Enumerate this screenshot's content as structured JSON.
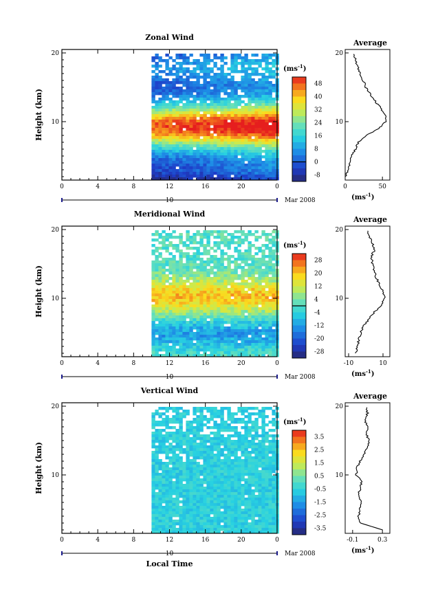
{
  "chart_data": [
    {
      "type": "heatmap",
      "title": "Zonal Wind",
      "ylabel": "Height (km)",
      "xlabel": "",
      "x_ticks": [
        "0",
        "4",
        "8",
        "12",
        "16",
        "20",
        "0"
      ],
      "y_ticks": [
        "20",
        "10"
      ],
      "date_day": "10",
      "date_label": "Mar 2008",
      "xlim": [
        0,
        24
      ],
      "ylim": [
        1.5,
        20.5
      ],
      "data_start_hour": 10,
      "colorbar": {
        "unit": "(ms",
        "unit_exp": "-1",
        "unit_close": ")",
        "tick_labels": [
          "48",
          "40",
          "32",
          "24",
          "16",
          "8",
          "0",
          "-8"
        ],
        "range": [
          -12,
          52
        ],
        "zero_line": 0
      },
      "profile": {
        "title": "Average",
        "x_ticks": [
          "0",
          "50"
        ],
        "xlim": [
          0,
          60
        ],
        "y_ticks": [
          "20",
          "10"
        ],
        "xlabel": "(ms",
        "xlabel_exp": "-1",
        "xlabel_close": ")",
        "heights": [
          2,
          3,
          4,
          5,
          6,
          7,
          8,
          9,
          10,
          11,
          12,
          13,
          14,
          15,
          16,
          17,
          18,
          19,
          20
        ],
        "values": [
          1,
          3,
          6,
          9,
          14,
          18,
          28,
          45,
          55,
          53,
          48,
          40,
          34,
          28,
          24,
          20,
          17,
          14,
          12
        ]
      }
    },
    {
      "type": "heatmap",
      "title": "Meridional Wind",
      "ylabel": "Height (km)",
      "xlabel": "",
      "x_ticks": [
        "0",
        "4",
        "8",
        "12",
        "16",
        "20",
        "0"
      ],
      "y_ticks": [
        "20",
        "10"
      ],
      "date_day": "10",
      "date_label": "Mar 2008",
      "xlim": [
        0,
        24
      ],
      "ylim": [
        1.5,
        20.5
      ],
      "data_start_hour": 10,
      "colorbar": {
        "unit": "(ms",
        "unit_exp": "-1",
        "unit_close": ")",
        "tick_labels": [
          "28",
          "20",
          "12",
          "4",
          "-4",
          "-12",
          "-20",
          "-28"
        ],
        "range": [
          -32,
          32
        ],
        "zero_line": 0
      },
      "profile": {
        "title": "Average",
        "x_ticks": [
          "-10",
          "10"
        ],
        "xlim": [
          -12,
          14
        ],
        "y_ticks": [
          "20",
          "10"
        ],
        "xlabel": "(ms",
        "xlabel_exp": "-1",
        "xlabel_close": ")",
        "heights": [
          2,
          3,
          4,
          5,
          6,
          7,
          8,
          9,
          10,
          11,
          12,
          13,
          14,
          15,
          16,
          17,
          18,
          19,
          20
        ],
        "values": [
          -6,
          -5,
          -4,
          -3,
          -1,
          2,
          5,
          9,
          11,
          10,
          8,
          6,
          5,
          4,
          3,
          5,
          4,
          2,
          1
        ]
      }
    },
    {
      "type": "heatmap",
      "title": "Vertical Wind",
      "ylabel": "Height (km)",
      "xlabel": "Local Time",
      "x_ticks": [
        "0",
        "4",
        "8",
        "12",
        "16",
        "20",
        "0"
      ],
      "y_ticks": [
        "20",
        "10"
      ],
      "date_day": "10",
      "date_label": "Mar 2008",
      "xlim": [
        0,
        24
      ],
      "ylim": [
        1.5,
        20.5
      ],
      "data_start_hour": 10,
      "colorbar": {
        "unit": "(ms",
        "unit_exp": "-1",
        "unit_close": ")",
        "tick_labels": [
          "3.5",
          "2.5",
          "1.5",
          "0.5",
          "-0.5",
          "-1.5",
          "-2.5",
          "-3.5"
        ],
        "range": [
          -4,
          4
        ]
      },
      "profile": {
        "title": "Average",
        "x_ticks": [
          "-0.1",
          "0.3"
        ],
        "xlim": [
          -0.2,
          0.4
        ],
        "y_ticks": [
          "20",
          "10"
        ],
        "xlabel": "(ms",
        "xlabel_exp": "-1",
        "xlabel_close": ")",
        "heights": [
          2,
          3,
          4,
          5,
          6,
          7,
          8,
          9,
          10,
          11,
          12,
          13,
          14,
          15,
          16,
          17,
          18,
          19,
          20
        ],
        "values": [
          0.3,
          0.0,
          -0.02,
          0.0,
          0.02,
          -0.02,
          0.0,
          0.02,
          -0.05,
          -0.04,
          0.0,
          0.05,
          0.1,
          0.12,
          0.08,
          0.1,
          0.06,
          0.1,
          0.08
        ]
      }
    }
  ]
}
